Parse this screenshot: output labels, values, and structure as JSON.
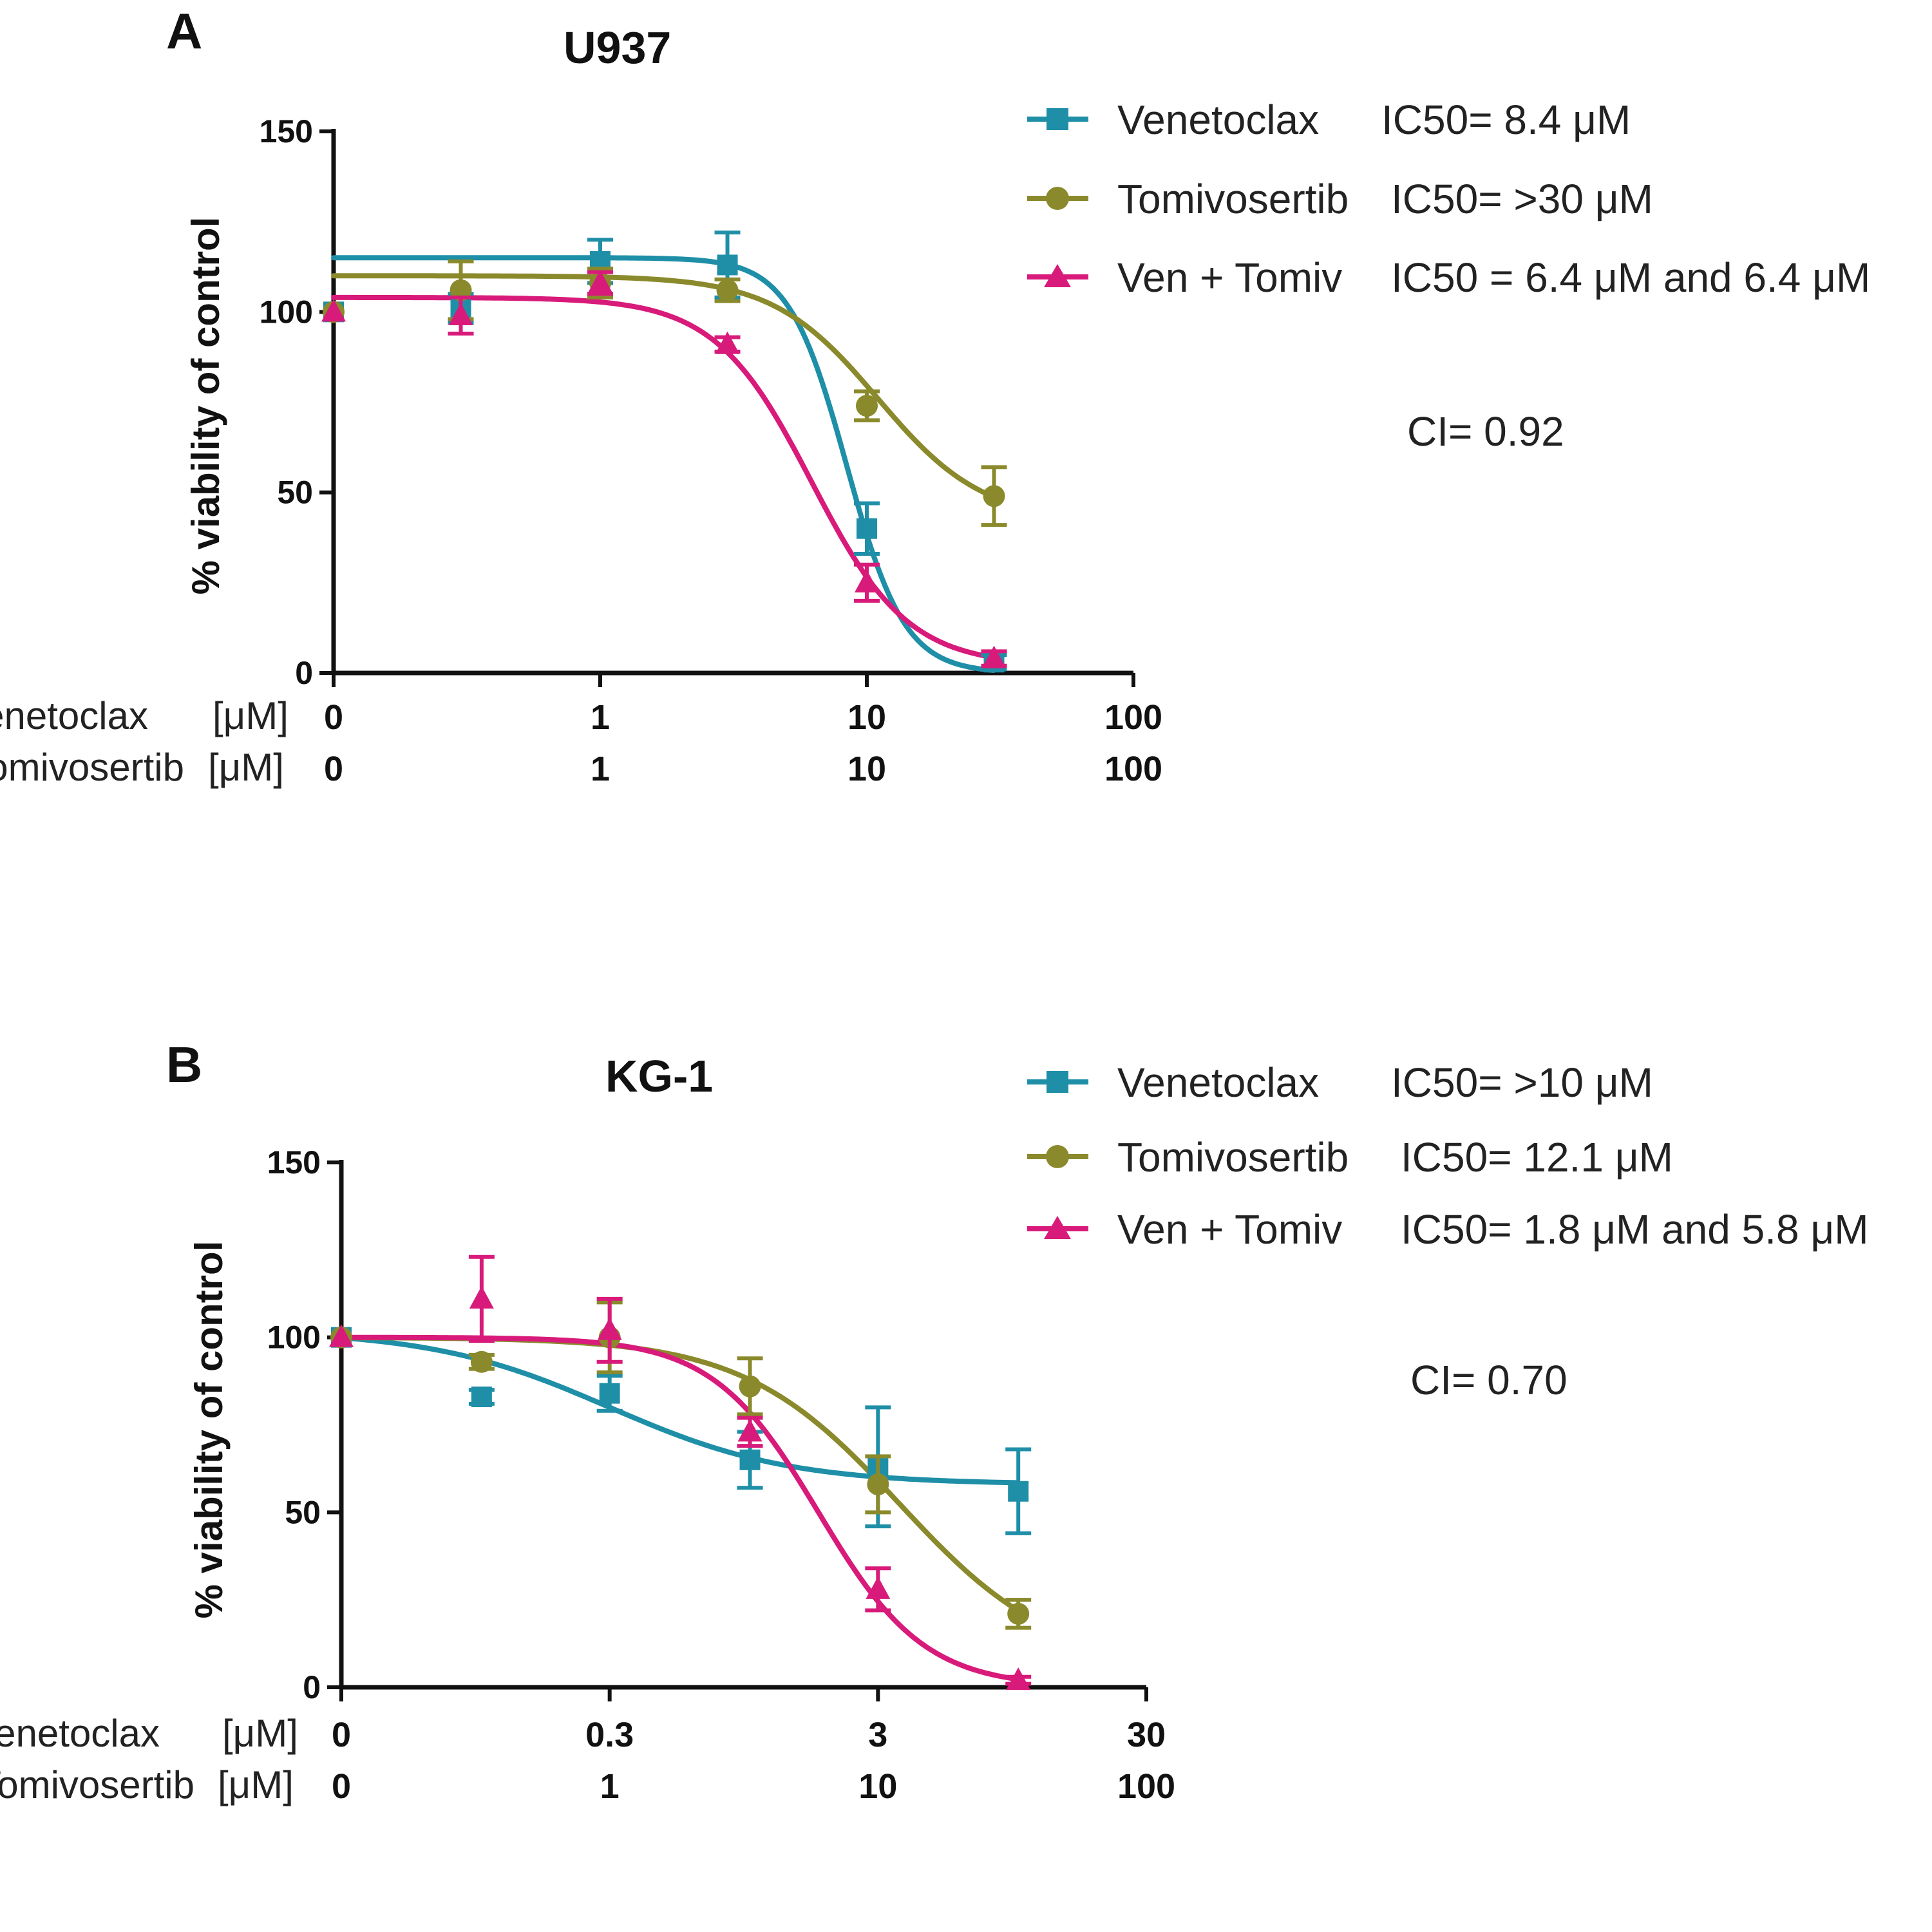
{
  "chart_data": [
    {
      "type": "line",
      "panel": "A",
      "title": "U937",
      "ylabel": "% viability of control",
      "ylim": [
        0,
        150
      ],
      "yticks": [
        "0",
        "50",
        "100",
        "150"
      ],
      "x_scale": "log (first row drug concentration)",
      "xlim": [
        0.1,
        100
      ],
      "x_axis_rows": [
        {
          "drug": "Venetoclax",
          "unit": "[μM]",
          "ticks": [
            "0",
            "1",
            "10",
            "100"
          ]
        },
        {
          "drug": "Tomivosertib",
          "unit": "[μM]",
          "ticks": [
            "0",
            "1",
            "10",
            "100"
          ]
        }
      ],
      "series": [
        {
          "name": "Venetoclax",
          "ic50_label": "IC50= 8.4 μM",
          "marker": "square",
          "color": "#1f8fa8",
          "points": [
            {
              "x": 0.1,
              "y": 100,
              "err": 0
            },
            {
              "x": 0.3,
              "y": 101,
              "err": 4
            },
            {
              "x": 1,
              "y": 114,
              "err": 6
            },
            {
              "x": 3,
              "y": 113,
              "err": 9
            },
            {
              "x": 10,
              "y": 40,
              "err": 7
            },
            {
              "x": 30,
              "y": 3,
              "err": 2
            }
          ],
          "fit": {
            "top": 115,
            "bottom": 0,
            "ec50": 8.4,
            "hill": 4.0
          }
        },
        {
          "name": "Tomivosertib",
          "ic50_label": "IC50= >30 μM",
          "marker": "circle",
          "color": "#8a8a2c",
          "points": [
            {
              "x": 0.1,
              "y": 100,
              "err": 0
            },
            {
              "x": 0.3,
              "y": 106,
              "err": 8
            },
            {
              "x": 1,
              "y": 108,
              "err": 4
            },
            {
              "x": 3,
              "y": 106,
              "err": 3
            },
            {
              "x": 10,
              "y": 74,
              "err": 4
            },
            {
              "x": 30,
              "y": 49,
              "err": 8
            }
          ],
          "fit": {
            "top": 110,
            "bottom": 42,
            "ec50": 11,
            "hill": 2.2
          }
        },
        {
          "name": "Ven + Tomiv",
          "ic50_label": "IC50 = 6.4 μM and 6.4 μM",
          "marker": "triangle",
          "color": "#d81b7a",
          "points": [
            {
              "x": 0.1,
              "y": 100,
              "err": 0
            },
            {
              "x": 0.3,
              "y": 99,
              "err": 5
            },
            {
              "x": 1,
              "y": 108,
              "err": 3
            },
            {
              "x": 3,
              "y": 91,
              "err": 2
            },
            {
              "x": 10,
              "y": 25,
              "err": 5
            },
            {
              "x": 30,
              "y": 4,
              "err": 2
            }
          ],
          "fit": {
            "top": 104,
            "bottom": 2,
            "ec50": 6.2,
            "hill": 2.4
          }
        }
      ],
      "annotation": "CI= 0.92"
    },
    {
      "type": "line",
      "panel": "B",
      "title": "KG-1",
      "ylabel": "% viability of control",
      "ylim": [
        0,
        150
      ],
      "yticks": [
        "0",
        "50",
        "100",
        "150"
      ],
      "x_scale": "log (first row drug concentration)",
      "xlim": [
        0.03,
        30
      ],
      "x_axis_rows": [
        {
          "drug": "Venetoclax",
          "unit": "[μM]",
          "ticks": [
            "0",
            "0.3",
            "3",
            "30"
          ]
        },
        {
          "drug": "Tomivosertib",
          "unit": "[μM]",
          "ticks": [
            "0",
            "1",
            "10",
            "100"
          ]
        }
      ],
      "series": [
        {
          "name": "Venetoclax",
          "ic50_label": "IC50= >10 μM",
          "marker": "square",
          "color": "#1f8fa8",
          "points": [
            {
              "x": 0.03,
              "y": 100,
              "err": 0
            },
            {
              "x": 0.1,
              "y": 83,
              "err": 2
            },
            {
              "x": 0.3,
              "y": 84,
              "err": 5
            },
            {
              "x": 1,
              "y": 65,
              "err": 8
            },
            {
              "x": 3,
              "y": 63,
              "err": 17
            },
            {
              "x": 10,
              "y": 56,
              "err": 12
            }
          ],
          "fit": {
            "top": 102,
            "bottom": 58,
            "ec50": 0.3,
            "hill": 1.3
          }
        },
        {
          "name": "Tomivosertib",
          "ic50_label": "IC50= 12.1 μM",
          "marker": "circle",
          "color": "#8a8a2c",
          "points": [
            {
              "x": 0.03,
              "y": 100,
              "err": 0
            },
            {
              "x": 0.1,
              "y": 93,
              "err": 2
            },
            {
              "x": 0.3,
              "y": 100,
              "err": 10
            },
            {
              "x": 1,
              "y": 86,
              "err": 8
            },
            {
              "x": 3,
              "y": 58,
              "err": 8
            },
            {
              "x": 10,
              "y": 21,
              "err": 4
            }
          ],
          "fit": {
            "top": 100,
            "bottom": 5,
            "ec50": 3.6,
            "hill": 1.5
          }
        },
        {
          "name": "Ven + Tomiv",
          "ic50_label": "IC50= 1.8 μM and 5.8 μM",
          "marker": "triangle",
          "color": "#d81b7a",
          "points": [
            {
              "x": 0.03,
              "y": 100,
              "err": 0
            },
            {
              "x": 0.1,
              "y": 111,
              "err": 12
            },
            {
              "x": 0.3,
              "y": 102,
              "err": 9
            },
            {
              "x": 1,
              "y": 73,
              "err": 4
            },
            {
              "x": 3,
              "y": 28,
              "err": 6
            },
            {
              "x": 10,
              "y": 2,
              "err": 1
            }
          ],
          "fit": {
            "top": 100,
            "bottom": 0,
            "ec50": 1.8,
            "hill": 2.2
          }
        }
      ],
      "annotation": "CI= 0.70"
    }
  ]
}
